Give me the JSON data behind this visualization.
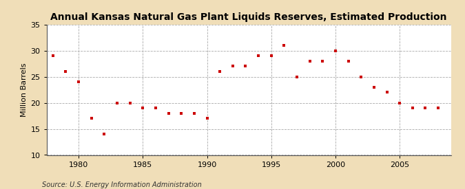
{
  "title": "Annual Kansas Natural Gas Plant Liquids Reserves, Estimated Production",
  "ylabel": "Million Barrels",
  "source": "Source: U.S. Energy Information Administration",
  "fig_background": "#f0deb8",
  "plot_background": "#ffffff",
  "marker_color": "#cc0000",
  "years": [
    1978,
    1979,
    1980,
    1981,
    1982,
    1983,
    1984,
    1985,
    1986,
    1987,
    1988,
    1989,
    1990,
    1991,
    1992,
    1993,
    1994,
    1995,
    1996,
    1997,
    1998,
    1999,
    2000,
    2001,
    2002,
    2003,
    2004,
    2005,
    2006,
    2007,
    2008
  ],
  "values": [
    29.0,
    26.0,
    24.0,
    17.0,
    14.0,
    20.0,
    20.0,
    19.0,
    19.0,
    18.0,
    18.0,
    18.0,
    17.0,
    26.0,
    27.0,
    27.0,
    29.0,
    29.0,
    31.0,
    25.0,
    28.0,
    28.0,
    30.0,
    28.0,
    25.0,
    23.0,
    22.0,
    20.0,
    19.0,
    19.0,
    19.0
  ],
  "ylim": [
    10,
    35
  ],
  "yticks": [
    10,
    15,
    20,
    25,
    30,
    35
  ],
  "xlim": [
    1977.5,
    2009
  ],
  "xticks": [
    1980,
    1985,
    1990,
    1995,
    2000,
    2005
  ],
  "grid_color": "#aaaaaa",
  "title_fontsize": 10,
  "label_fontsize": 8,
  "tick_fontsize": 8,
  "source_fontsize": 7
}
